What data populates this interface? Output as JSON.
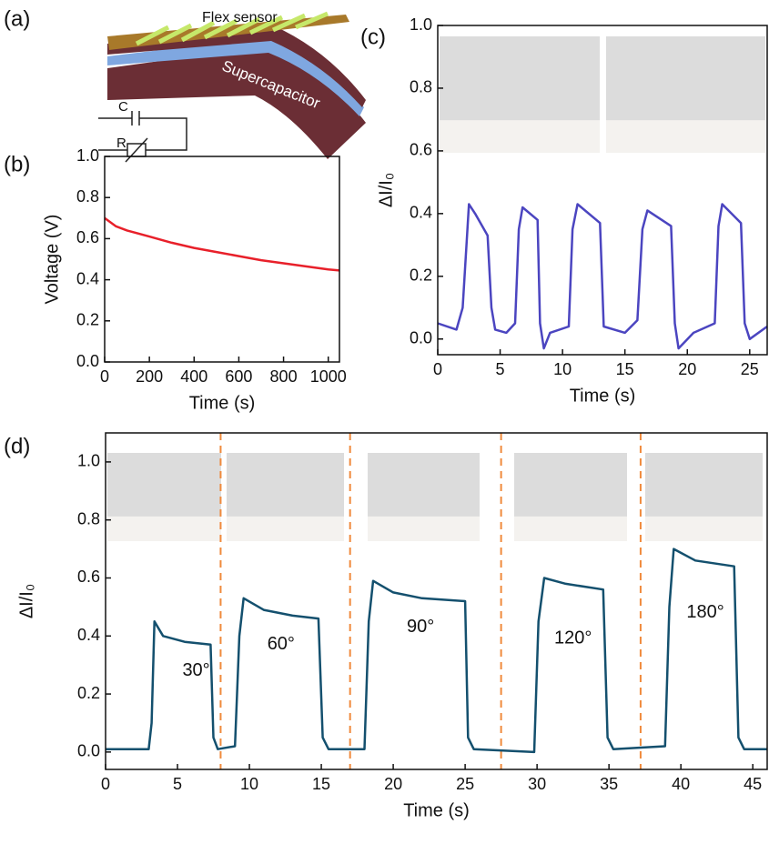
{
  "diagram": {
    "label": "(a)",
    "labels": [
      "Flex sensor",
      "Supercapacitor",
      "C",
      "R"
    ]
  },
  "chart_data": [
    {
      "type": "line",
      "panel_label": "(b)",
      "xlabel": "Time (s)",
      "ylabel": "Voltage (V)",
      "xlim": [
        0,
        1050
      ],
      "ylim": [
        0,
        1
      ],
      "xticks": [
        0,
        200,
        400,
        600,
        800,
        1000
      ],
      "yticks": [
        {
          "value": 0,
          "label": "0.0"
        },
        0.2,
        0.4,
        0.6,
        0.8,
        {
          "value": 1,
          "label": "1.0"
        }
      ],
      "series": [
        {
          "color": "#e8202a",
          "x": [
            0,
            50,
            100,
            200,
            300,
            400,
            500,
            600,
            700,
            800,
            900,
            1000,
            1050
          ],
          "values": [
            0.7,
            0.66,
            0.64,
            0.61,
            0.58,
            0.555,
            0.535,
            0.515,
            0.495,
            0.48,
            0.465,
            0.45,
            0.445
          ]
        }
      ]
    },
    {
      "type": "line",
      "panel_label": "(c)",
      "xlabel": "Time (s)",
      "ylabel": "ΔI/I₀",
      "xlim": [
        0,
        26.4
      ],
      "ylim": [
        -0.05,
        1.0
      ],
      "xticks": [
        0,
        5,
        10,
        15,
        20,
        25
      ],
      "yticks": [
        {
          "value": 0,
          "label": "0.0"
        },
        0.2,
        0.4,
        0.6,
        0.8,
        {
          "value": 1,
          "label": "1.0"
        }
      ],
      "series": [
        {
          "color": "#4b45c0",
          "x": [
            0,
            1.5,
            2,
            2.5,
            3,
            4,
            4.3,
            4.6,
            5.5,
            6.2,
            6.5,
            6.8,
            8,
            8.2,
            8.5,
            9,
            10.5,
            10.8,
            11.2,
            13,
            13.3,
            15,
            16,
            16.4,
            16.8,
            18.7,
            19,
            19.3,
            20.5,
            22.2,
            22.5,
            22.8,
            24.3,
            24.6,
            25,
            26.4
          ],
          "values": [
            0.05,
            0.03,
            0.1,
            0.43,
            0.4,
            0.33,
            0.1,
            0.03,
            0.02,
            0.05,
            0.35,
            0.42,
            0.38,
            0.05,
            -0.03,
            0.02,
            0.04,
            0.35,
            0.43,
            0.37,
            0.04,
            0.02,
            0.06,
            0.35,
            0.41,
            0.36,
            0.05,
            -0.03,
            0.02,
            0.05,
            0.36,
            0.43,
            0.37,
            0.05,
            0.0,
            0.04
          ]
        }
      ]
    },
    {
      "type": "line",
      "panel_label": "(d)",
      "xlabel": "Time (s)",
      "ylabel": "ΔI/I₀",
      "xlim": [
        0,
        46
      ],
      "ylim": [
        -0.06,
        1.1
      ],
      "xticks": [
        0,
        5,
        10,
        15,
        20,
        25,
        30,
        35,
        40,
        45
      ],
      "yticks": [
        {
          "value": 0,
          "label": "0.0"
        },
        0.2,
        0.4,
        0.6,
        0.8,
        {
          "value": 1,
          "label": "1.0"
        }
      ],
      "vlines": [
        8.0,
        17.0,
        27.5,
        37.2
      ],
      "annotations": [
        {
          "text": "30°",
          "x": 6.3,
          "y": 0.28
        },
        {
          "text": "60°",
          "x": 12.2,
          "y": 0.37
        },
        {
          "text": "90°",
          "x": 21.9,
          "y": 0.43
        },
        {
          "text": "120°",
          "x": 32.5,
          "y": 0.39
        },
        {
          "text": "180°",
          "x": 41.7,
          "y": 0.48
        }
      ],
      "series": [
        {
          "color": "#14506e",
          "x": [
            0,
            3,
            3.2,
            3.4,
            4,
            5.5,
            7.3,
            7.5,
            7.8,
            9,
            9.3,
            9.6,
            11,
            13,
            14.8,
            15.1,
            15.5,
            18,
            18.3,
            18.6,
            20,
            22,
            25,
            25.2,
            25.6,
            29.8,
            30.1,
            30.5,
            32,
            34.6,
            34.9,
            35.3,
            38.9,
            39.2,
            39.5,
            41,
            43.7,
            44,
            44.4,
            46
          ],
          "values": [
            0.01,
            0.01,
            0.1,
            0.45,
            0.4,
            0.38,
            0.37,
            0.05,
            0.01,
            0.02,
            0.4,
            0.53,
            0.49,
            0.47,
            0.46,
            0.05,
            0.01,
            0.01,
            0.45,
            0.59,
            0.55,
            0.53,
            0.52,
            0.05,
            0.01,
            0.0,
            0.45,
            0.6,
            0.58,
            0.56,
            0.05,
            0.01,
            0.02,
            0.5,
            0.7,
            0.66,
            0.64,
            0.05,
            0.01,
            0.01
          ]
        }
      ]
    }
  ]
}
